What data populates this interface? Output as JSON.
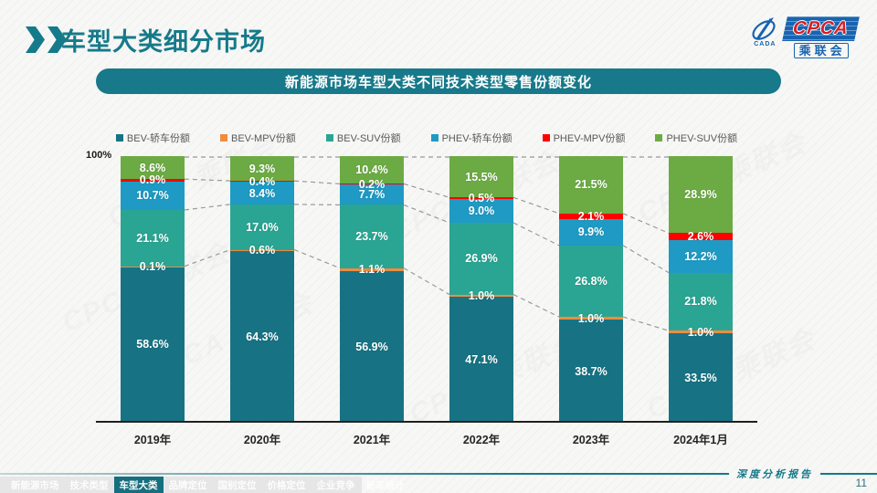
{
  "slide": {
    "title": "车型大类细分市场",
    "subtitle": "新能源市场车型大类不同技术类型零售份额变化",
    "footer_note": "深度分析报告",
    "page_number": "11"
  },
  "logo": {
    "acronym": "CPCA",
    "cn_name": "乘联会",
    "icon_text": "CADA"
  },
  "footer_nav": {
    "active_index": 2,
    "items": [
      "新能源市场",
      "技术类型",
      "车型大类",
      "品牌定位",
      "国别定位",
      "价格定位",
      "企业竞争",
      "新车统计"
    ]
  },
  "colors": {
    "brand_teal": "#157A8A",
    "axis": "#1f1f1f",
    "connector": "#999999"
  },
  "chart_data": {
    "type": "bar",
    "subtype": "stacked-100-percent",
    "title": "新能源市场车型大类不同技术类型零售份额变化",
    "y_axis_top_label": "100%",
    "value_suffix": "%",
    "ylim": [
      0,
      100
    ],
    "grid": false,
    "legend_position": "top",
    "categories": [
      "2019年",
      "2020年",
      "2021年",
      "2022年",
      "2023年",
      "2024年1月"
    ],
    "series": [
      {
        "name": "BEV-轿车份额",
        "color": "#177384",
        "values": [
          58.6,
          64.3,
          56.9,
          47.1,
          38.7,
          33.5
        ]
      },
      {
        "name": "BEV-MPV份额",
        "color": "#EF8C3E",
        "values": [
          0.1,
          0.6,
          1.1,
          1.0,
          1.0,
          1.0
        ]
      },
      {
        "name": "BEV-SUV份额",
        "color": "#2BA593",
        "values": [
          21.1,
          17.0,
          23.7,
          26.9,
          26.8,
          21.8
        ]
      },
      {
        "name": "PHEV-轿车份额",
        "color": "#1E9AC4",
        "values": [
          10.7,
          8.4,
          7.7,
          9.0,
          9.9,
          12.2
        ]
      },
      {
        "name": "PHEV-MPV份额",
        "color": "#FE0000",
        "values": [
          0.9,
          0.4,
          0.2,
          0.5,
          2.1,
          2.6
        ]
      },
      {
        "name": "PHEV-SUV份额",
        "color": "#6CAB44",
        "values": [
          8.6,
          9.3,
          10.4,
          15.5,
          21.5,
          28.9
        ]
      }
    ],
    "connector_levels_after_series": [
      1,
      2,
      4
    ],
    "watermark_text": "CPCA 乘联会"
  }
}
